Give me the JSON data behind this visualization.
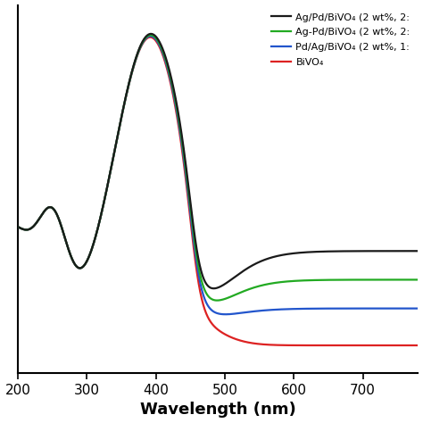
{
  "xlabel": "Wavelength (nm)",
  "xlim": [
    200,
    780
  ],
  "legend": [
    {
      "label": "Ag/Pd/BiVO₄ (2 wt%, 2:",
      "color": "#1a1a1a"
    },
    {
      "label": "Ag-Pd/BiVO₄ (2 wt%, 2:",
      "color": "#22aa22"
    },
    {
      "label": "Pd/Ag/BiVO₄ (2 wt%, 1:",
      "color": "#2255cc"
    },
    {
      "label": "BiVO₄",
      "color": "#dd2222"
    }
  ],
  "xticks": [
    200,
    300,
    400,
    500,
    600,
    700
  ],
  "linewidth": 1.6
}
